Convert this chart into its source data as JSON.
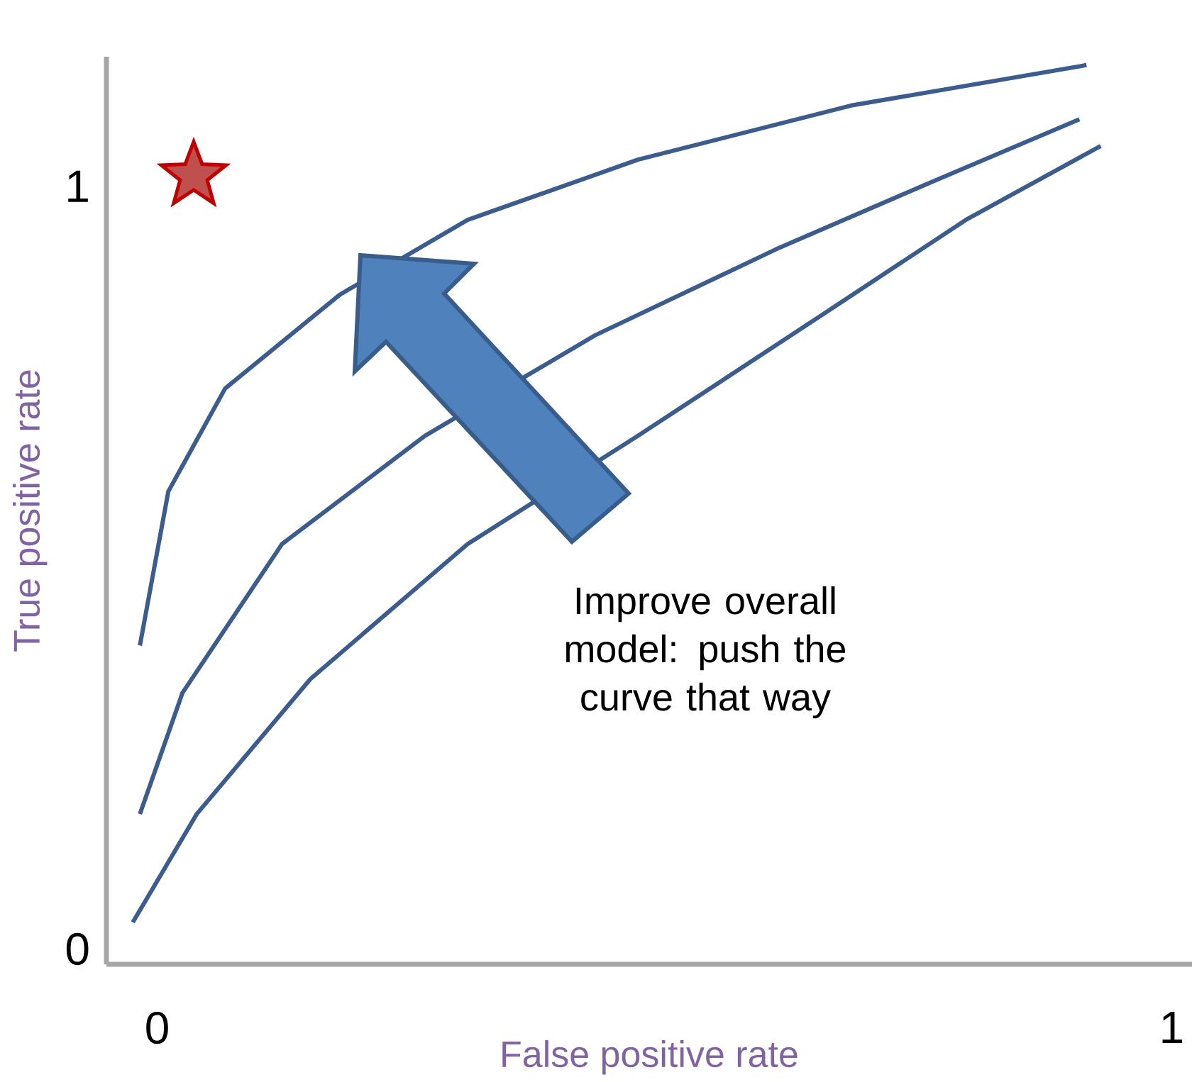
{
  "chart_data": {
    "type": "line",
    "xlabel": "False positive rate",
    "ylabel": "True positive rate",
    "xlim": [
      -0.05,
      1.02
    ],
    "ylim": [
      -0.02,
      1.17
    ],
    "xticks": [
      0,
      1
    ],
    "yticks": [
      0,
      1
    ],
    "marker": "none",
    "line_style": "solid",
    "grid": false,
    "annotations": [
      "Improve overall model: push the curve that way"
    ],
    "series": [
      {
        "color": "#3b5c8c",
        "x": [
          -0.017,
          0.011,
          0.067,
          0.18,
          0.306,
          0.474,
          0.684,
          0.916
        ],
        "values": [
          0.398,
          0.6,
          0.735,
          0.858,
          0.956,
          1.035,
          1.106,
          1.159
        ]
      },
      {
        "color": "#3b5c8c",
        "x": [
          -0.017,
          0.025,
          0.123,
          0.264,
          0.432,
          0.614,
          0.769,
          0.909
        ],
        "values": [
          0.177,
          0.336,
          0.531,
          0.673,
          0.805,
          0.92,
          1.009,
          1.088
        ]
      },
      {
        "color": "#3b5c8c",
        "x": [
          -0.024,
          0.039,
          0.151,
          0.306,
          0.474,
          0.656,
          0.797,
          0.93
        ],
        "values": [
          0.035,
          0.177,
          0.354,
          0.531,
          0.673,
          0.832,
          0.956,
          1.053
        ]
      },
      {
        "type": "scatter",
        "marker": "star",
        "color": "#c0504d",
        "x": [
          0.036
        ],
        "values": [
          1.014
        ]
      }
    ]
  }
}
